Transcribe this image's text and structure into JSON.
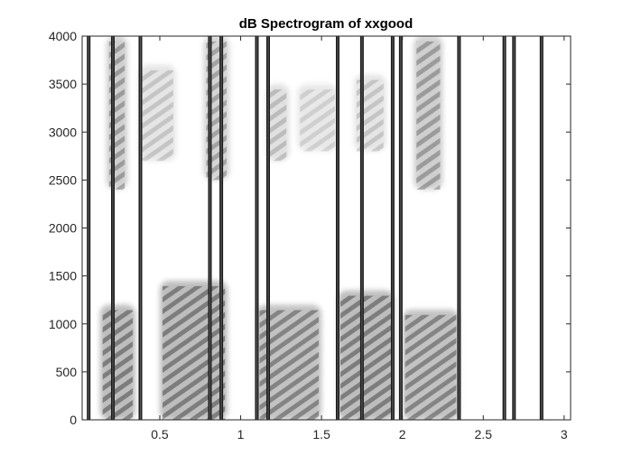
{
  "chart_data": {
    "type": "heatmap",
    "title": "dB Spectrogram of xxgood",
    "xlabel": "",
    "ylabel": "",
    "xlim": [
      0.02,
      3.04
    ],
    "ylim": [
      0,
      4000
    ],
    "x_ticks": [
      0.5,
      1,
      1.5,
      2,
      2.5,
      3
    ],
    "x_tick_labels": [
      "0.5",
      "1",
      "1.5",
      "2",
      "2.5",
      "3"
    ],
    "y_ticks": [
      0,
      500,
      1000,
      1500,
      2000,
      2500,
      3000,
      3500,
      4000
    ],
    "y_tick_labels": [
      "0",
      "500",
      "1000",
      "1500",
      "2000",
      "2500",
      "3000",
      "3500",
      "4000"
    ],
    "colormap": "gray (inverted: dark = high dB)",
    "grid": false,
    "vertical_lines_x": [
      0.06,
      0.21,
      0.38,
      0.81,
      0.88,
      1.1,
      1.17,
      1.6,
      1.75,
      1.94,
      1.99,
      2.35,
      2.63,
      2.69,
      2.86
    ],
    "energy_regions": [
      {
        "x": [
          0.13,
          0.35
        ],
        "y": [
          0,
          1200
        ],
        "intensity": 0.75
      },
      {
        "x": [
          0.5,
          0.92
        ],
        "y": [
          0,
          1450
        ],
        "intensity": 0.75
      },
      {
        "x": [
          1.1,
          1.5
        ],
        "y": [
          0,
          1200
        ],
        "intensity": 0.7
      },
      {
        "x": [
          1.6,
          1.95
        ],
        "y": [
          0,
          1350
        ],
        "intensity": 0.75
      },
      {
        "x": [
          2.0,
          2.35
        ],
        "y": [
          0,
          1150
        ],
        "intensity": 0.7
      },
      {
        "x": [
          0.17,
          0.3
        ],
        "y": [
          2400,
          4000
        ],
        "intensity": 0.55
      },
      {
        "x": [
          0.37,
          0.6
        ],
        "y": [
          2700,
          3700
        ],
        "intensity": 0.3
      },
      {
        "x": [
          0.77,
          0.93
        ],
        "y": [
          2500,
          4000
        ],
        "intensity": 0.5
      },
      {
        "x": [
          1.16,
          1.3
        ],
        "y": [
          2700,
          3500
        ],
        "intensity": 0.35
      },
      {
        "x": [
          1.35,
          1.6
        ],
        "y": [
          2800,
          3500
        ],
        "intensity": 0.25
      },
      {
        "x": [
          1.7,
          1.9
        ],
        "y": [
          2800,
          3600
        ],
        "intensity": 0.3
      },
      {
        "x": [
          2.07,
          2.25
        ],
        "y": [
          2400,
          4000
        ],
        "intensity": 0.55
      }
    ]
  },
  "colors": {
    "axes": "#262626",
    "line": "#1a1a1a"
  }
}
